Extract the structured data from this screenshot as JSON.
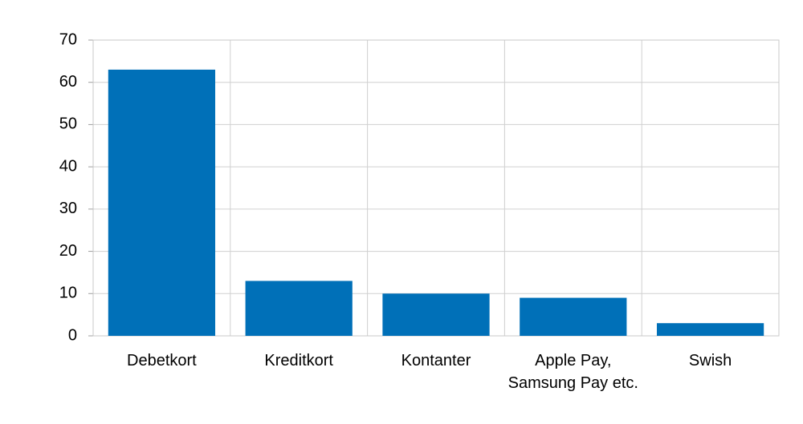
{
  "chart_data": {
    "type": "bar",
    "categories": [
      "Debetkort",
      "Kreditkort",
      "Kontanter",
      "Apple Pay,\nSamsung Pay etc.",
      "Swish"
    ],
    "values": [
      63,
      13,
      10,
      9,
      3
    ],
    "color": "#0070b8",
    "ylim": [
      0,
      70
    ],
    "yticks": [
      0,
      10,
      20,
      30,
      40,
      50,
      60,
      70
    ],
    "grid": true
  }
}
